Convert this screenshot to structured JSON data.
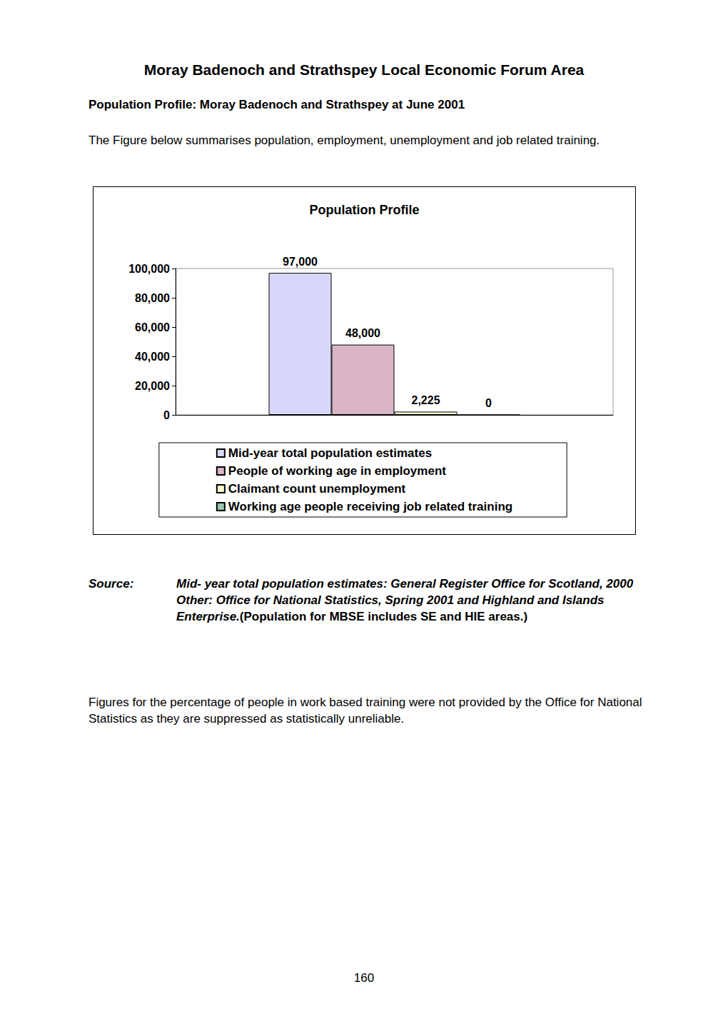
{
  "heading": "Moray Badenoch and Strathspey Local Economic Forum Area",
  "subheading": "Population Profile: Moray Badenoch and Strathspey at June 2001",
  "intro": "The Figure below summarises population, employment, unemployment and job related training.",
  "chart_data": {
    "type": "bar",
    "title": "Population Profile",
    "categories": [
      null
    ],
    "series": [
      {
        "name": "Mid-year total population estimates",
        "color": "#d8d8fa",
        "values": [
          97000
        ],
        "value_labels": [
          "97,000"
        ]
      },
      {
        "name": "People of working age in employment",
        "color": "#d9b4c6",
        "values": [
          48000
        ],
        "value_labels": [
          "48,000"
        ]
      },
      {
        "name": "Claimant count unemployment",
        "color": "#ffffcc",
        "values": [
          2225
        ],
        "value_labels": [
          "2,225"
        ]
      },
      {
        "name": "Working age people receiving job related training",
        "color": "#99c2b0",
        "values": [
          0
        ],
        "value_labels": [
          "0"
        ]
      }
    ],
    "ylim": [
      0,
      100000
    ],
    "yticks": [
      0,
      {
        "value": 20000,
        "label": "20,000"
      },
      {
        "value": 40000,
        "label": "40,000"
      },
      {
        "value": 60000,
        "label": "60,000"
      },
      {
        "value": 80000,
        "label": "80,000"
      },
      {
        "value": 100000,
        "label": "100,000"
      }
    ],
    "grid": false,
    "legend": "bottom",
    "data_labels": true
  },
  "source": {
    "label": "Source:",
    "lines": [
      "Mid- year total population estimates: General Register Office for Scotland, 2000",
      "Other:  Office for National Statistics, Spring 2001 and Highland and Islands Enterprise."
    ],
    "note": "(Population for MBSE includes SE and HIE areas.)"
  },
  "footnote": "Figures for the percentage of people in work based training were not provided by the Office for National Statistics as they are suppressed as statistically unreliable.",
  "page_number": "160"
}
